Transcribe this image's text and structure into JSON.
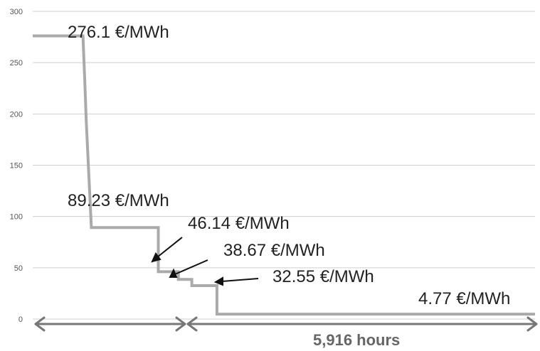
{
  "chart_data": {
    "type": "line",
    "step": true,
    "ylim": [
      0,
      300
    ],
    "yticks": [
      "0",
      "50",
      "100",
      "150",
      "200",
      "250",
      "300"
    ],
    "grid": true,
    "series": [
      {
        "x": [
          0,
          3,
          3.1,
          3.2,
          3.5,
          7.5,
          7.5,
          8.7,
          8.7,
          9.5,
          9.5,
          11.0,
          11.0,
          30
        ],
        "y": [
          276.1,
          276.1,
          235,
          192,
          89.23,
          89.23,
          46.14,
          46.14,
          38.67,
          38.67,
          32.55,
          32.55,
          4.77,
          4.77
        ],
        "color": "#aaaaaa"
      }
    ],
    "annotations": [
      {
        "id": "a1",
        "text": "276.1 €/MWh"
      },
      {
        "id": "a2",
        "text": "89.23 €/MWh"
      },
      {
        "id": "a3",
        "text": "46.14 €/MWh"
      },
      {
        "id": "a4",
        "text": "38.67 €/MWh"
      },
      {
        "id": "a5",
        "text": "32.55 €/MWh"
      },
      {
        "id": "a6",
        "text": "4.77 €/MWh"
      }
    ],
    "span_label": "5,916 hours"
  }
}
